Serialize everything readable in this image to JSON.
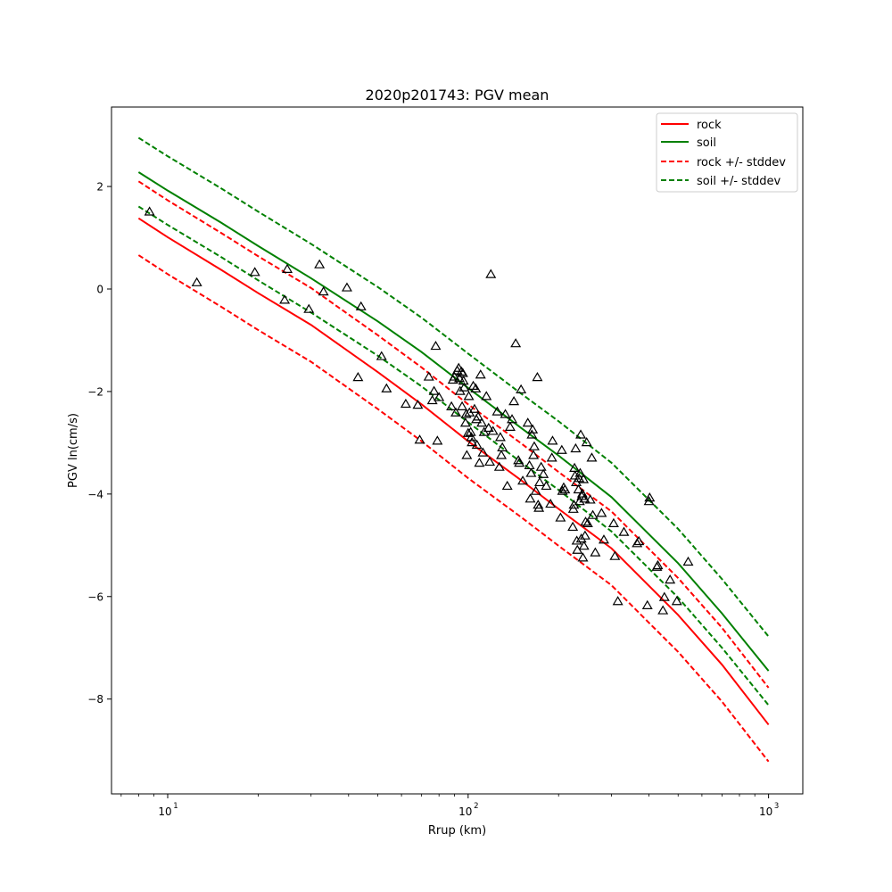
{
  "chart_data": {
    "type": "scatter",
    "title": "2020p201743: PGV mean",
    "xlabel": "Rrup (km)",
    "ylabel": "PGV ln(cm/s)",
    "xscale": "log",
    "xlim": [
      6.5,
      1300
    ],
    "ylim": [
      -9.85,
      3.55
    ],
    "xticks": [
      10,
      100,
      1000
    ],
    "xtick_labels": [
      "10",
      "10",
      "10"
    ],
    "xtick_exponents": [
      "1",
      "2",
      "3"
    ],
    "yticks": [
      2,
      0,
      -2,
      -4,
      -6,
      -8
    ],
    "ytick_labels": [
      "2",
      "0",
      "−2",
      "−4",
      "−6",
      "−8"
    ],
    "grid": false,
    "legend_position": "top-right",
    "series": [
      {
        "name": "rock",
        "kind": "line",
        "style": "solid",
        "color": "#ff0000",
        "x": [
          8,
          10,
          15,
          20,
          30,
          50,
          70,
          100,
          150,
          200,
          300,
          500,
          700,
          1000
        ],
        "y": [
          1.38,
          1.01,
          0.38,
          -0.08,
          -0.7,
          -1.62,
          -2.25,
          -2.97,
          -3.73,
          -4.29,
          -5.06,
          -6.36,
          -7.33,
          -8.5
        ]
      },
      {
        "name": "soil",
        "kind": "line",
        "style": "solid",
        "color": "#008000",
        "x": [
          8,
          10,
          15,
          20,
          30,
          50,
          70,
          100,
          150,
          200,
          300,
          500,
          700,
          1000
        ],
        "y": [
          2.28,
          1.92,
          1.3,
          0.84,
          0.21,
          -0.63,
          -1.23,
          -1.93,
          -2.71,
          -3.25,
          -4.06,
          -5.35,
          -6.33,
          -7.45
        ]
      },
      {
        "name": "rock +/- stddev",
        "kind": "line",
        "style": "dashed",
        "color": "#ff0000",
        "x": [
          8,
          10,
          15,
          20,
          30,
          50,
          70,
          100,
          150,
          200,
          300,
          500,
          700,
          1000
        ],
        "y": [
          2.1,
          1.73,
          1.1,
          0.64,
          0.02,
          -0.9,
          -1.53,
          -2.25,
          -3.01,
          -3.57,
          -4.34,
          -5.64,
          -6.61,
          -7.78
        ]
      },
      {
        "name": "rock +/- stddev",
        "kind": "line",
        "style": "dashed",
        "color": "#ff0000",
        "x": [
          8,
          10,
          15,
          20,
          30,
          50,
          70,
          100,
          150,
          200,
          300,
          500,
          700,
          1000
        ],
        "y": [
          0.66,
          0.29,
          -0.34,
          -0.8,
          -1.42,
          -2.34,
          -2.97,
          -3.69,
          -4.45,
          -5.01,
          -5.78,
          -7.08,
          -8.05,
          -9.22
        ]
      },
      {
        "name": "soil +/- stddev",
        "kind": "line",
        "style": "dashed",
        "color": "#008000",
        "x": [
          8,
          10,
          15,
          20,
          30,
          50,
          70,
          100,
          150,
          200,
          300,
          500,
          700,
          1000
        ],
        "y": [
          2.95,
          2.59,
          1.97,
          1.51,
          0.88,
          0.04,
          -0.56,
          -1.26,
          -2.04,
          -2.58,
          -3.39,
          -4.68,
          -5.66,
          -6.78
        ]
      },
      {
        "name": "soil +/- stddev",
        "kind": "line",
        "style": "dashed",
        "color": "#008000",
        "x": [
          8,
          10,
          15,
          20,
          30,
          50,
          70,
          100,
          150,
          200,
          300,
          500,
          700,
          1000
        ],
        "y": [
          1.61,
          1.25,
          0.63,
          0.17,
          -0.46,
          -1.3,
          -1.9,
          -2.6,
          -3.38,
          -3.92,
          -4.73,
          -6.02,
          -7.0,
          -8.12
        ]
      },
      {
        "name": "",
        "kind": "scatter",
        "marker": "triangle",
        "color": "#000000",
        "points": [
          [
            8.7,
            1.5
          ],
          [
            12.5,
            0.12
          ],
          [
            19.5,
            0.32
          ],
          [
            24.5,
            -0.22
          ],
          [
            25,
            0.38
          ],
          [
            29.5,
            -0.4
          ],
          [
            32,
            0.47
          ],
          [
            33,
            -0.06
          ],
          [
            39.5,
            0.02
          ],
          [
            44,
            -0.35
          ],
          [
            43,
            -1.73
          ],
          [
            51.5,
            -1.32
          ],
          [
            53.5,
            -1.95
          ],
          [
            62,
            -2.25
          ],
          [
            68,
            -2.27
          ],
          [
            69,
            -2.95
          ],
          [
            74,
            -1.72
          ],
          [
            76,
            -2.18
          ],
          [
            77,
            -2.0
          ],
          [
            78,
            -1.12
          ],
          [
            79,
            -2.97
          ],
          [
            80,
            -2.12
          ],
          [
            88,
            -2.3
          ],
          [
            89,
            -1.78
          ],
          [
            90,
            -1.72
          ],
          [
            91,
            -2.42
          ],
          [
            92,
            -1.6
          ],
          [
            93,
            -1.55
          ],
          [
            93.5,
            -1.75
          ],
          [
            94,
            -2.0
          ],
          [
            95,
            -1.62
          ],
          [
            95.5,
            -2.3
          ],
          [
            96,
            -1.65
          ],
          [
            96.5,
            -1.8
          ],
          [
            97,
            -1.93
          ],
          [
            98,
            -2.62
          ],
          [
            98.5,
            -2.45
          ],
          [
            99,
            -3.25
          ],
          [
            100,
            -2.82
          ],
          [
            100.5,
            -2.1
          ],
          [
            101,
            -2.42
          ],
          [
            102,
            -2.8
          ],
          [
            102.5,
            -2.9
          ],
          [
            103,
            -3.0
          ],
          [
            104,
            -1.9
          ],
          [
            105,
            -2.35
          ],
          [
            106,
            -1.95
          ],
          [
            106.5,
            -2.55
          ],
          [
            107,
            -3.05
          ],
          [
            108,
            -2.5
          ],
          [
            109,
            -3.4
          ],
          [
            110,
            -1.68
          ],
          [
            111,
            -2.62
          ],
          [
            112,
            -3.2
          ],
          [
            113,
            -2.8
          ],
          [
            115,
            -2.1
          ],
          [
            117,
            -2.72
          ],
          [
            118,
            -3.38
          ],
          [
            119,
            0.28
          ],
          [
            121,
            -2.78
          ],
          [
            125,
            -2.4
          ],
          [
            127,
            -3.48
          ],
          [
            128,
            -2.9
          ],
          [
            129,
            -3.25
          ],
          [
            130,
            -3.1
          ],
          [
            133,
            -2.45
          ],
          [
            135,
            -3.85
          ],
          [
            138,
            -2.7
          ],
          [
            140,
            -2.55
          ],
          [
            142,
            -2.2
          ],
          [
            144,
            -1.07
          ],
          [
            147,
            -3.35
          ],
          [
            148,
            -3.4
          ],
          [
            150,
            -1.97
          ],
          [
            152,
            -3.75
          ],
          [
            158,
            -2.62
          ],
          [
            160,
            -3.45
          ],
          [
            161,
            -4.1
          ],
          [
            162,
            -3.6
          ],
          [
            163,
            -2.85
          ],
          [
            164,
            -2.75
          ],
          [
            165,
            -3.25
          ],
          [
            166,
            -3.08
          ],
          [
            168,
            -3.95
          ],
          [
            170,
            -1.73
          ],
          [
            171,
            -4.22
          ],
          [
            172,
            -4.28
          ],
          [
            173,
            -3.78
          ],
          [
            175,
            -3.48
          ],
          [
            178,
            -3.62
          ],
          [
            182,
            -3.85
          ],
          [
            188,
            -4.2
          ],
          [
            190,
            -3.3
          ],
          [
            191,
            -2.97
          ],
          [
            203,
            -4.47
          ],
          [
            205,
            -3.15
          ],
          [
            206,
            -3.95
          ],
          [
            208,
            -3.88
          ],
          [
            210,
            -3.92
          ],
          [
            223,
            -4.65
          ],
          [
            224,
            -4.3
          ],
          [
            225,
            -4.22
          ],
          [
            226,
            -3.5
          ],
          [
            227,
            -3.65
          ],
          [
            228,
            -3.12
          ],
          [
            229,
            -3.78
          ],
          [
            230,
            -4.92
          ],
          [
            231,
            -5.1
          ],
          [
            233,
            -3.92
          ],
          [
            234,
            -3.7
          ],
          [
            235,
            -4.15
          ],
          [
            236,
            -3.6
          ],
          [
            237,
            -2.85
          ],
          [
            238,
            -4.88
          ],
          [
            239,
            -4.05
          ],
          [
            240,
            -4.0
          ],
          [
            241,
            -5.25
          ],
          [
            242,
            -3.72
          ],
          [
            243,
            -5.02
          ],
          [
            244,
            -4.1
          ],
          [
            245,
            -4.82
          ],
          [
            246,
            -4.55
          ],
          [
            248,
            -3.0
          ],
          [
            250,
            -4.58
          ],
          [
            255,
            -4.12
          ],
          [
            258,
            -3.3
          ],
          [
            260,
            -4.42
          ],
          [
            265,
            -5.15
          ],
          [
            278,
            -4.38
          ],
          [
            283,
            -4.9
          ],
          [
            305,
            -4.58
          ],
          [
            308,
            -5.22
          ],
          [
            315,
            -6.1
          ],
          [
            330,
            -4.75
          ],
          [
            365,
            -4.97
          ],
          [
            370,
            -4.93
          ],
          [
            395,
            -6.18
          ],
          [
            400,
            -4.15
          ],
          [
            402,
            -4.08
          ],
          [
            425,
            -5.43
          ],
          [
            428,
            -5.4
          ],
          [
            445,
            -6.28
          ],
          [
            450,
            -6.02
          ],
          [
            470,
            -5.68
          ],
          [
            495,
            -6.1
          ],
          [
            540,
            -5.33
          ]
        ]
      }
    ]
  }
}
